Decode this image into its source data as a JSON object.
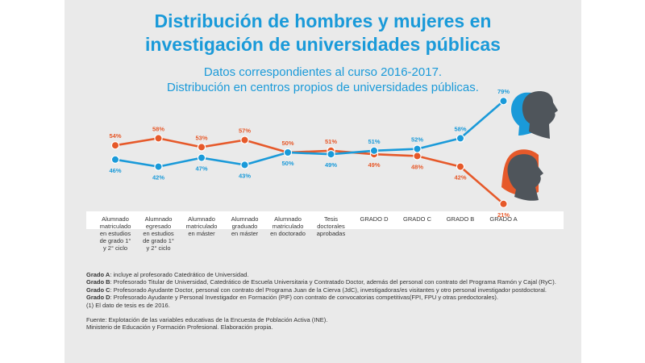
{
  "colors": {
    "hombres": "#1a9ad9",
    "mujeres": "#e6592a",
    "title": "#1a9ad9",
    "panel": "#eaeaea",
    "silhouette": "#4f555b"
  },
  "header": {
    "title_line1": "Distribución de hombres y mujeres en",
    "title_line2": "investigación de universidades públicas",
    "subtitle_line1": "Datos correspondientes al curso 2016-2017.",
    "subtitle_line2": "Distribución en centros propios de universidades públicas."
  },
  "chart_data": {
    "type": "line",
    "categories": [
      "Alumnado matriculado en estudios de grado 1° y 2° ciclo",
      "Alumnado egresado en estudios de grado 1° y 2° ciclo",
      "Alumnado matriculado en máster",
      "Alumnado graduado en máster",
      "Alumnado matriculado en doctorado",
      "Tesis doctorales aprobadas",
      "GRADO D",
      "GRADO C",
      "GRADO B",
      "GRADO A"
    ],
    "category_lines": [
      [
        "Alumnado",
        "matriculado",
        "en estudios",
        "de grado 1°",
        "y 2° ciclo"
      ],
      [
        "Alumnado",
        "egresado",
        "en estudios",
        "de grado 1°",
        "y 2° ciclo"
      ],
      [
        "Alumnado",
        "matriculado",
        "en máster"
      ],
      [
        "Alumnado",
        "graduado",
        "en máster"
      ],
      [
        "Alumnado",
        "matriculado",
        "en doctorado"
      ],
      [
        "Tesis",
        "doctorales",
        "aprobadas"
      ],
      [
        "GRADO D"
      ],
      [
        "GRADO C"
      ],
      [
        "GRADO B"
      ],
      [
        "GRADO A"
      ]
    ],
    "series": [
      {
        "key": "hombres",
        "values": [
          46,
          42,
          47,
          43,
          50,
          49,
          51,
          52,
          58,
          79
        ],
        "labels": [
          "46%",
          "42%",
          "47%",
          "43%",
          "50%",
          "49%",
          "51%",
          "52%",
          "58%",
          "79%"
        ]
      },
      {
        "key": "mujeres",
        "values": [
          54,
          58,
          53,
          57,
          50,
          51,
          49,
          48,
          42,
          21
        ],
        "labels": [
          "54%",
          "58%",
          "53%",
          "57%",
          "50%",
          "51%",
          "49%",
          "48%",
          "42%",
          "21%"
        ]
      }
    ],
    "ylim": [
      0,
      100
    ],
    "grid": false,
    "legend": "icons-right"
  },
  "notes": {
    "grado_a_label": "Grado A",
    "grado_a_text": ": incluye al profesorado Catedrático de Universidad.",
    "grado_b_label": "Grado B",
    "grado_b_text": ": Profesorado Titular de Universidad, Catedrático de Escuela Universitaria y Contratado Doctor, además del personal con contrato del Programa Ramón y Cajal (RyC).",
    "grado_c_label": "Grado C",
    "grado_c_text": ": Profesorado Ayudante Doctor, personal con contrato del Programa Juan de la Cierva (JdC), investigadoras/es visitantes y otro personal investigador postdoctoral.",
    "grado_d_label": "Grado D",
    "grado_d_text": ": Profesorado Ayudante y Personal Investigador en Formación (PIF) con contrato de convocatorias competitivas(FPI, FPU y otras predoctorales).",
    "footnote": "(1) El dato de tesis es de 2016.",
    "source_line1": "Fuente: Explotación de las variables educativas de la Encuesta de Población  Activa (INE).",
    "source_line2": "Ministerio de Educación y Formación Profesional. Elaboración propia."
  }
}
